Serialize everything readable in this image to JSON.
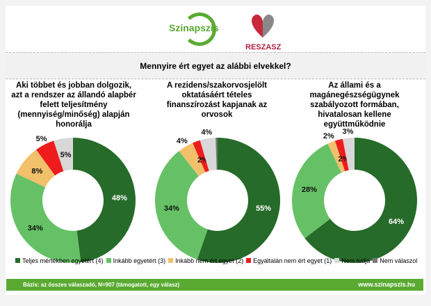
{
  "logos": {
    "left": "Szinapszis",
    "right": "RESZASZ"
  },
  "header": {
    "question": "Mennyire ért egyet az alábbi elvekkel?"
  },
  "colors": [
    "#266b2a",
    "#66c166",
    "#f2bf6a",
    "#ee1c1c",
    "#d8d8d8",
    "#777777"
  ],
  "chart_data": [
    {
      "type": "pie",
      "title": "Aki többet és jobban dolgozik, azt a rendszer az állandó alapbér felett teljesítmény (mennyiség/minőség) alapján honorálja",
      "categories": [
        "Teljes mértékben egyetért (4)",
        "Inkább egyetért (3)",
        "Inkább nem ért egyet (2)",
        "Egyáltalán nem ért egyet (1)",
        "Nem tudja",
        "Nem válaszol"
      ],
      "values": [
        48,
        34,
        8,
        5,
        5,
        0
      ],
      "labels": [
        "48%",
        "34%",
        "8%",
        "5%",
        "5%",
        ""
      ]
    },
    {
      "type": "pie",
      "title": "A rezidens/szakorvosjelölt oktatásáért tételes finanszírozást kapjanak az orvosok",
      "categories": [
        "Teljes mértékben egyetért (4)",
        "Inkább egyetért (3)",
        "Inkább nem ért egyet (2)",
        "Egyáltalán nem ért egyet (1)",
        "Nem tudja",
        "Nem válaszol"
      ],
      "values": [
        55,
        34,
        4,
        2,
        4,
        0.5
      ],
      "labels": [
        "55%",
        "34%",
        "4%",
        "2%",
        "4%",
        ""
      ]
    },
    {
      "type": "pie",
      "title": "Az állami és a magánegészségügynek szabályozott formában, hivatalosan kellene együttműködnie",
      "categories": [
        "Teljes mértékben egyetért (4)",
        "Inkább egyetért (3)",
        "Inkább nem ért egyet (2)",
        "Egyáltalán nem ért egyet (1)",
        "Nem tudja",
        "Nem válaszol"
      ],
      "values": [
        64,
        28,
        2,
        2,
        3,
        0
      ],
      "labels": [
        "64%",
        "28%",
        "2%",
        "2%",
        "3%",
        ""
      ]
    }
  ],
  "legend": [
    "Teljes mértékben egyetért (4)",
    "Inkább egyetért (3)",
    "Inkább nem ért egyet (2)",
    "Egyáltalán nem ért egyet (1)",
    "Nem tudja",
    "Nem válaszol"
  ],
  "footer": {
    "base": "Bázis: az összes válaszadó, N=907 (támogatott, egy válasz)",
    "url": "www.szinapszis.hu"
  }
}
